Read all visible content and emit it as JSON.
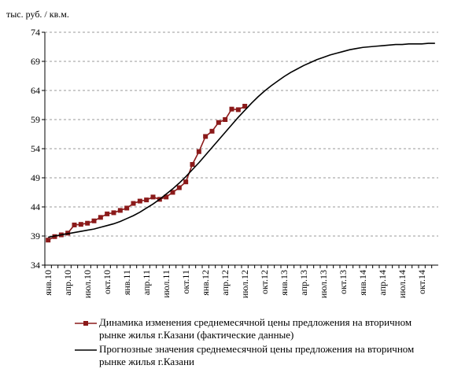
{
  "chart_data": {
    "type": "line",
    "y_label": "тыс. руб. / кв.м.",
    "categories": [
      "янв.10",
      null,
      null,
      "апр.10",
      null,
      null,
      "июл.10",
      null,
      null,
      "окт.10",
      null,
      null,
      "янв.11",
      null,
      null,
      "апр.11",
      null,
      null,
      "июл.11",
      null,
      null,
      "окт.11",
      null,
      null,
      "янв.12",
      null,
      null,
      "апр.12",
      null,
      null,
      "июл.12",
      null,
      null,
      "окт.12",
      null,
      null,
      "янв.13",
      null,
      null,
      "апр.13",
      null,
      null,
      "июл.13",
      null,
      null,
      "окт.13",
      null,
      null,
      "янв.14",
      null,
      null,
      "апр.14",
      null,
      null,
      "июл.14",
      null,
      null,
      "окт.14",
      null,
      null
    ],
    "series": [
      {
        "name": "Динамика изменения среднемесячной цены предложения на вторичном рынке жилья г.Казани (фактические данные)",
        "color": "#8b1a1a",
        "marker": "square",
        "values": [
          38.3,
          38.9,
          39.2,
          39.5,
          40.9,
          41.0,
          41.2,
          41.6,
          42.2,
          42.8,
          43.0,
          43.4,
          43.8,
          44.6,
          45.0,
          45.2,
          45.7,
          45.3,
          45.7,
          46.5,
          47.3,
          48.3,
          51.3,
          53.5,
          56.1,
          57.0,
          58.5,
          59.0,
          60.8,
          60.7,
          61.3,
          null,
          null,
          null,
          null,
          null,
          null,
          null,
          null,
          null,
          null,
          null,
          null,
          null,
          null,
          null,
          null,
          null,
          null,
          null,
          null,
          null,
          null,
          null,
          null,
          null,
          null,
          null,
          null,
          null
        ]
      },
      {
        "name": "Прогнозные значения среднемесячной цены предложения на вторичном рынке жилья г.Казани",
        "color": "#000000",
        "values": [
          38.8,
          39.0,
          39.2,
          39.4,
          39.6,
          39.8,
          40.0,
          40.2,
          40.5,
          40.8,
          41.1,
          41.5,
          42.0,
          42.5,
          43.1,
          43.8,
          44.5,
          45.3,
          46.2,
          47.1,
          48.1,
          49.2,
          50.4,
          51.6,
          52.9,
          54.2,
          55.5,
          56.8,
          58.1,
          59.4,
          60.6,
          61.8,
          62.9,
          63.9,
          64.8,
          65.6,
          66.4,
          67.1,
          67.7,
          68.3,
          68.8,
          69.3,
          69.7,
          70.1,
          70.4,
          70.7,
          71.0,
          71.2,
          71.4,
          71.5,
          71.6,
          71.7,
          71.8,
          71.9,
          71.9,
          72.0,
          72.0,
          72.0,
          72.1,
          72.1
        ]
      }
    ],
    "ylim": [
      34,
      74
    ],
    "yticks": [
      34,
      39,
      44,
      49,
      54,
      59,
      64,
      69,
      74
    ],
    "grid": true
  }
}
